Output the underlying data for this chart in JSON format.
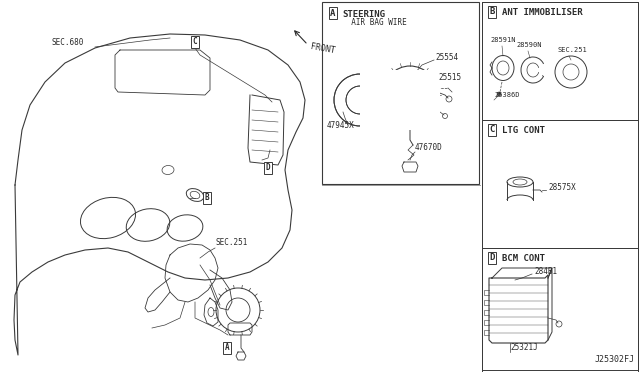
{
  "bg_color": "#ffffff",
  "line_color": "#3a3a3a",
  "text_color": "#2a2a2a",
  "fig_width": 6.4,
  "fig_height": 3.72,
  "diagram_code": "J25302FJ",
  "sections": {
    "A": {
      "label": "A",
      "title_line1": "STEERING",
      "title_line2": "  AIR BAG WIRE",
      "parts": [
        "25554",
        "25515",
        "47945X",
        "47670D"
      ]
    },
    "B": {
      "label": "B",
      "title": "ANT IMMOBILISER",
      "parts": [
        "28591N",
        "28590N",
        "SEC.251",
        "25386D"
      ]
    },
    "C": {
      "label": "C",
      "title": "LTG CONT",
      "parts": [
        "28575X"
      ]
    },
    "D": {
      "label": "D",
      "title": "BCM CONT",
      "parts": [
        "284B1",
        "25321J"
      ]
    }
  },
  "main_labels": {
    "sec_680": "SEC.680",
    "sec_251": "SEC.251",
    "front": "FRONT"
  }
}
